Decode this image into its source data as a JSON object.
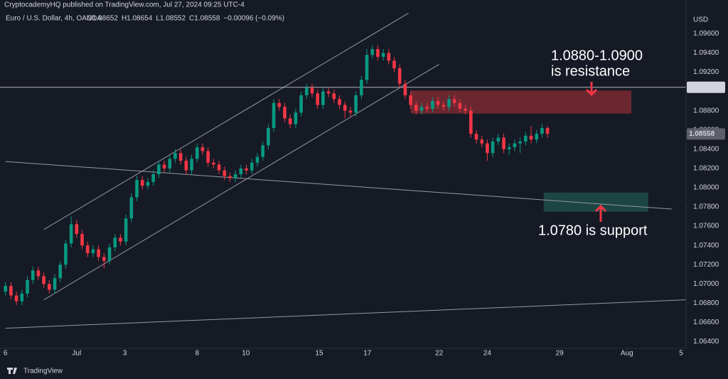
{
  "chart_data": {
    "type": "candlestick",
    "credit": "CryptocademyHQ published on TradingView.com, Jul 27, 2024 09:25 UTC-4",
    "symbol": "Euro / U.S. Dollar, 4h, OANDA",
    "header_values": [
      "O1.08652",
      "H1.08654",
      "L1.08552",
      "C1.08558",
      "−0.00096 (−0.09%)"
    ],
    "currency": "USD",
    "brand": "TradingView",
    "up_color": "#089981",
    "down_color": "#f23645",
    "xlim": [
      -1,
      124.3
    ],
    "ylim": [
      1.0633,
      1.0995
    ],
    "xticks": [
      {
        "value": 0,
        "label": "6"
      },
      {
        "value": 13,
        "label": "Jul"
      },
      {
        "value": 21.8,
        "label": "3"
      },
      {
        "value": 35,
        "label": "8"
      },
      {
        "value": 43.9,
        "label": "10"
      },
      {
        "value": 57.3,
        "label": "15"
      },
      {
        "value": 66.1,
        "label": "17"
      },
      {
        "value": 79.2,
        "label": "22"
      },
      {
        "value": 88,
        "label": "24"
      },
      {
        "value": 101.2,
        "label": "29"
      },
      {
        "value": 113.5,
        "label": "Aug"
      },
      {
        "value": 123.4,
        "label": "5"
      }
    ],
    "yticks": [
      {
        "value": 1.064,
        "label": "1.06400"
      },
      {
        "value": 1.066,
        "label": "1.06600"
      },
      {
        "value": 1.068,
        "label": "1.06800"
      },
      {
        "value": 1.07,
        "label": "1.07000"
      },
      {
        "value": 1.072,
        "label": "1.07200"
      },
      {
        "value": 1.074,
        "label": "1.07400"
      },
      {
        "value": 1.076,
        "label": "1.07600"
      },
      {
        "value": 1.078,
        "label": "1.07800"
      },
      {
        "value": 1.08,
        "label": "1.08000"
      },
      {
        "value": 1.082,
        "label": "1.08200"
      },
      {
        "value": 1.084,
        "label": "1.08400"
      },
      {
        "value": 1.086,
        "label": "1.08600"
      },
      {
        "value": 1.088,
        "label": "1.08800"
      },
      {
        "value": 1.092,
        "label": "1.09200"
      },
      {
        "value": 1.094,
        "label": "1.09400"
      },
      {
        "value": 1.096,
        "label": "1.09600"
      }
    ],
    "hline": 1.09043,
    "last_price": 1.08558,
    "candles": [
      [
        1.0692,
        1.0702,
        1.0688,
        1.0698
      ],
      [
        1.0698,
        1.0702,
        1.0684,
        1.0688
      ],
      [
        1.0688,
        1.0692,
        1.0678,
        1.0682
      ],
      [
        1.0682,
        1.0694,
        1.0678,
        1.069
      ],
      [
        1.069,
        1.0708,
        1.0686,
        1.0704
      ],
      [
        1.0704,
        1.0718,
        1.07,
        1.0714
      ],
      [
        1.0714,
        1.0718,
        1.0704,
        1.0708
      ],
      [
        1.0708,
        1.0712,
        1.0696,
        1.07
      ],
      [
        1.07,
        1.0704,
        1.069,
        1.0694
      ],
      [
        1.0694,
        1.071,
        1.069,
        1.0706
      ],
      [
        1.0706,
        1.0724,
        1.0702,
        1.072
      ],
      [
        1.072,
        1.0746,
        1.0716,
        1.0742
      ],
      [
        1.0742,
        1.077,
        1.0738,
        1.0762
      ],
      [
        1.0762,
        1.0766,
        1.0748,
        1.0752
      ],
      [
        1.0752,
        1.0756,
        1.0736,
        1.074
      ],
      [
        1.074,
        1.0744,
        1.0728,
        1.0732
      ],
      [
        1.0732,
        1.074,
        1.0728,
        1.0736
      ],
      [
        1.0736,
        1.074,
        1.0724,
        1.0728
      ],
      [
        1.0728,
        1.0732,
        1.0716,
        1.0724
      ],
      [
        1.0724,
        1.0742,
        1.072,
        1.0738
      ],
      [
        1.0738,
        1.0752,
        1.0734,
        1.0748
      ],
      [
        1.0748,
        1.0752,
        1.074,
        1.0744
      ],
      [
        1.0744,
        1.0772,
        1.074,
        1.0768
      ],
      [
        1.0768,
        1.0794,
        1.0764,
        1.079
      ],
      [
        1.079,
        1.0812,
        1.0786,
        1.0808
      ],
      [
        1.0808,
        1.0812,
        1.0798,
        1.0802
      ],
      [
        1.0802,
        1.081,
        1.0798,
        1.0806
      ],
      [
        1.0806,
        1.0818,
        1.0802,
        1.0814
      ],
      [
        1.0814,
        1.0828,
        1.081,
        1.0824
      ],
      [
        1.0824,
        1.0828,
        1.0816,
        1.082
      ],
      [
        1.082,
        1.0834,
        1.0816,
        1.083
      ],
      [
        1.083,
        1.084,
        1.0826,
        1.0836
      ],
      [
        1.0836,
        1.084,
        1.0824,
        1.0828
      ],
      [
        1.0828,
        1.0832,
        1.0814,
        1.0818
      ],
      [
        1.0818,
        1.0834,
        1.0814,
        1.083
      ],
      [
        1.083,
        1.0846,
        1.0826,
        1.0842
      ],
      [
        1.0842,
        1.0846,
        1.0834,
        1.0838
      ],
      [
        1.0838,
        1.0842,
        1.0822,
        1.0826
      ],
      [
        1.0826,
        1.083,
        1.082,
        1.0824
      ],
      [
        1.0824,
        1.0828,
        1.0814,
        1.0818
      ],
      [
        1.0818,
        1.0822,
        1.0808,
        1.0812
      ],
      [
        1.0812,
        1.0816,
        1.0806,
        1.081
      ],
      [
        1.081,
        1.0818,
        1.0806,
        1.0814
      ],
      [
        1.0814,
        1.0824,
        1.081,
        1.082
      ],
      [
        1.082,
        1.0824,
        1.0814,
        1.0818
      ],
      [
        1.0818,
        1.083,
        1.0814,
        1.0826
      ],
      [
        1.0826,
        1.0836,
        1.0822,
        1.0832
      ],
      [
        1.0832,
        1.0848,
        1.0828,
        1.0844
      ],
      [
        1.0844,
        1.0866,
        1.084,
        1.0862
      ],
      [
        1.0862,
        1.0892,
        1.0858,
        1.0888
      ],
      [
        1.0888,
        1.0892,
        1.088,
        1.0884
      ],
      [
        1.0884,
        1.0888,
        1.0868,
        1.0872
      ],
      [
        1.0872,
        1.0876,
        1.0862,
        1.0866
      ],
      [
        1.0866,
        1.0882,
        1.0862,
        1.0878
      ],
      [
        1.0878,
        1.09,
        1.0874,
        1.0896
      ],
      [
        1.0896,
        1.0908,
        1.0892,
        1.0904
      ],
      [
        1.0904,
        1.0908,
        1.0894,
        1.0898
      ],
      [
        1.0898,
        1.0902,
        1.0882,
        1.0886
      ],
      [
        1.0886,
        1.0904,
        1.0882,
        1.09
      ],
      [
        1.09,
        1.0904,
        1.0894,
        1.0898
      ],
      [
        1.0898,
        1.0902,
        1.0888,
        1.0892
      ],
      [
        1.0892,
        1.0896,
        1.0882,
        1.0886
      ],
      [
        1.0886,
        1.089,
        1.0872,
        1.088
      ],
      [
        1.088,
        1.0884,
        1.0874,
        1.0878
      ],
      [
        1.0878,
        1.09,
        1.0874,
        1.0896
      ],
      [
        1.0896,
        1.0916,
        1.0892,
        1.0912
      ],
      [
        1.0912,
        1.0944,
        1.0908,
        1.0938
      ],
      [
        1.0938,
        1.0948,
        1.0934,
        1.0944
      ],
      [
        1.0944,
        1.0948,
        1.0932,
        1.0936
      ],
      [
        1.0936,
        1.0944,
        1.0932,
        1.094
      ],
      [
        1.094,
        1.0944,
        1.0928,
        1.0932
      ],
      [
        1.0932,
        1.0936,
        1.092,
        1.0924
      ],
      [
        1.0924,
        1.0928,
        1.0904,
        1.0908
      ],
      [
        1.0908,
        1.0912,
        1.0892,
        1.0896
      ],
      [
        1.0896,
        1.09,
        1.0882,
        1.0886
      ],
      [
        1.0886,
        1.089,
        1.0876,
        1.088
      ],
      [
        1.088,
        1.0888,
        1.0876,
        1.0884
      ],
      [
        1.0884,
        1.0888,
        1.0878,
        1.0882
      ],
      [
        1.0882,
        1.0894,
        1.0878,
        1.089
      ],
      [
        1.089,
        1.0894,
        1.0882,
        1.0886
      ],
      [
        1.0886,
        1.089,
        1.088,
        1.0884
      ],
      [
        1.0884,
        1.0896,
        1.088,
        1.0892
      ],
      [
        1.0892,
        1.0896,
        1.0884,
        1.0888
      ],
      [
        1.0888,
        1.0892,
        1.0878,
        1.0882
      ],
      [
        1.0882,
        1.0886,
        1.0876,
        1.088
      ],
      [
        1.088,
        1.0884,
        1.0852,
        1.0856
      ],
      [
        1.0856,
        1.086,
        1.0846,
        1.085
      ],
      [
        1.085,
        1.0854,
        1.0842,
        1.0846
      ],
      [
        1.0846,
        1.085,
        1.0828,
        1.0836
      ],
      [
        1.0836,
        1.0852,
        1.0832,
        1.0848
      ],
      [
        1.0848,
        1.0856,
        1.0844,
        1.0852
      ],
      [
        1.0852,
        1.0856,
        1.0836,
        1.084
      ],
      [
        1.084,
        1.0846,
        1.0834,
        1.0842
      ],
      [
        1.0842,
        1.085,
        1.0838,
        1.0846
      ],
      [
        1.0846,
        1.0852,
        1.0836,
        1.0848
      ],
      [
        1.0848,
        1.0858,
        1.0844,
        1.0854
      ],
      [
        1.0854,
        1.0864,
        1.0846,
        1.085
      ],
      [
        1.085,
        1.086,
        1.0846,
        1.0856
      ],
      [
        1.0856,
        1.0866,
        1.0852,
        1.0862
      ],
      [
        1.0862,
        1.0864,
        1.0852,
        1.0856
      ]
    ],
    "zones": [
      {
        "x": [
          74,
          114.3
        ],
        "y": [
          1.0877,
          1.0901
        ],
        "color": "#7a2a33",
        "label": [
          "1.0880-1.0900",
          "is resistance"
        ]
      },
      {
        "x": [
          98.3,
          117.4
        ],
        "y": [
          1.0775,
          1.0795
        ],
        "color": "#1f4d4a",
        "label": [
          "1.0780 is support"
        ]
      }
    ],
    "trendlines": [
      {
        "x": [
          7,
          73.6
        ],
        "y": [
          1.07565,
          1.09813
        ]
      },
      {
        "x": [
          7,
          79.2
        ],
        "y": [
          1.06835,
          1.09282
        ]
      },
      {
        "x": [
          0,
          121.7
        ],
        "y": [
          1.08272,
          1.07778
        ]
      },
      {
        "x": [
          0,
          124.3
        ],
        "y": [
          1.0654,
          1.06835
        ]
      }
    ]
  }
}
